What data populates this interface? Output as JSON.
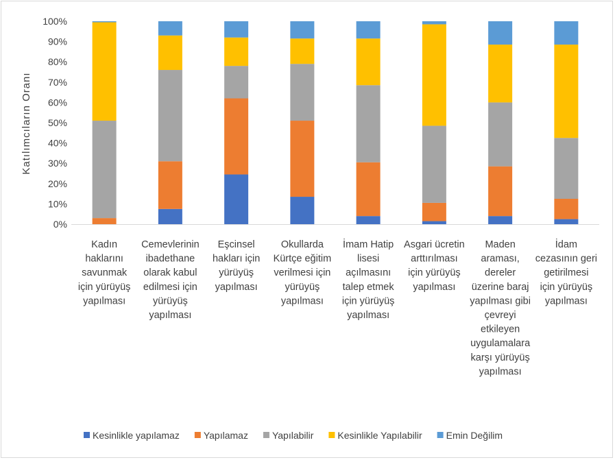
{
  "chart_data": {
    "type": "bar",
    "stacked": true,
    "percent": true,
    "ylabel": "Katılımcıların Oranı",
    "ylim": [
      0,
      100
    ],
    "yticks": [
      "0%",
      "10%",
      "20%",
      "30%",
      "40%",
      "50%",
      "60%",
      "70%",
      "80%",
      "90%",
      "100%"
    ],
    "grid": false,
    "legend_position": "bottom",
    "categories": [
      [
        "Kadın",
        "haklarını",
        "savunmak",
        "için yürüyüş",
        "yapılması"
      ],
      [
        "Cemevlerinin",
        "ibadethane",
        "olarak kabul",
        "edilmesi için",
        "yürüyüş",
        "yapılması"
      ],
      [
        "Eşcinsel",
        "hakları için",
        "yürüyüş",
        "yapılması"
      ],
      [
        "Okullarda",
        "Kürtçe eğitim",
        "verilmesi için",
        "yürüyüş",
        "yapılması"
      ],
      [
        "İmam Hatip",
        "lisesi",
        "açılmasını",
        "talep etmek",
        "için yürüyüş",
        "yapılması"
      ],
      [
        "Asgari ücretin",
        "arttırılması",
        "için yürüyüş",
        "yapılması"
      ],
      [
        "Maden",
        "araması,",
        "dereler",
        "üzerine baraj",
        "yapılması gibi",
        "çevreyi",
        "etkileyen",
        "uygulamalara",
        "karşı yürüyüş",
        "yapılması"
      ],
      [
        "İdam",
        "cezasının geri",
        "getirilmesi",
        "için yürüyüş",
        "yapılması"
      ]
    ],
    "series": [
      {
        "name": "Kesinlikle yapılamaz",
        "color": "#4472c4",
        "values": [
          0,
          7.5,
          24.5,
          13.5,
          4,
          1.5,
          4,
          2.5
        ]
      },
      {
        "name": "Yapılamaz",
        "color": "#ed7d31",
        "values": [
          3,
          23.5,
          37.5,
          37.5,
          26.5,
          9,
          24.5,
          10
        ]
      },
      {
        "name": "Yapılabilir",
        "color": "#a5a5a5",
        "values": [
          48,
          45,
          16,
          28,
          38,
          38,
          31.5,
          30
        ]
      },
      {
        "name": "Kesinlikle Yapılabilir",
        "color": "#ffc000",
        "values": [
          48.5,
          17,
          14,
          12.5,
          23,
          50,
          28.5,
          46
        ]
      },
      {
        "name": "Emin Değilim",
        "color": "#5b9bd5",
        "values": [
          0.5,
          7,
          8,
          8.5,
          8.5,
          1.5,
          11.5,
          11.5
        ]
      }
    ]
  }
}
